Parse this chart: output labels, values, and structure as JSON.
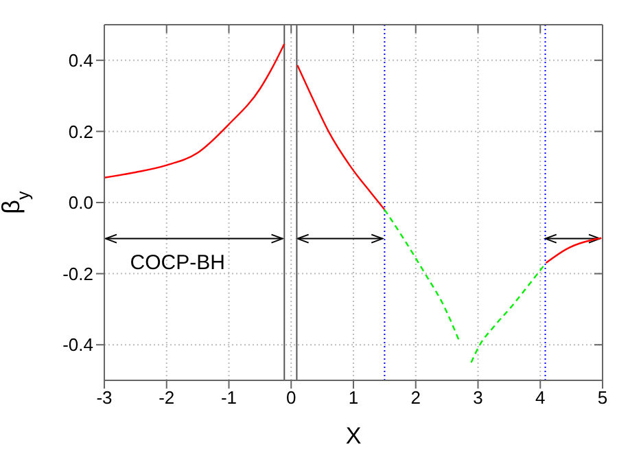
{
  "chart_data": {
    "type": "line",
    "xlabel": "X",
    "ylabel": "β$_{y}$",
    "xlim": [
      -3,
      5
    ],
    "xticks": [
      -3,
      -2,
      -1,
      0,
      1,
      2,
      3,
      4,
      5
    ],
    "ylim": [
      -0.5,
      0.5
    ],
    "yticks": [
      {
        "value": -0.4,
        "label": "-0.4"
      },
      {
        "value": -0.2,
        "label": "-0.2"
      },
      {
        "value": 0,
        "label": "0.0"
      },
      {
        "value": 0.2,
        "label": "0.2"
      },
      {
        "value": 0.4,
        "label": "0.4"
      }
    ],
    "grid": true,
    "marker": "none",
    "series": [
      {
        "color": "#ff0000",
        "line_style": "solid",
        "x": [
          -3,
          -2.5,
          -2,
          -1.5,
          -1,
          -0.5,
          -0.3,
          -0.11
        ],
        "values": [
          0.07,
          0.085,
          0.105,
          0.14,
          0.22,
          0.32,
          0.38,
          0.446
        ]
      },
      {
        "color": "#ff0000",
        "line_style": "solid",
        "x": [
          0.1,
          0.3,
          0.6,
          1.0,
          1.27,
          1.5
        ],
        "values": [
          0.386,
          0.31,
          0.2,
          0.09,
          0.03,
          -0.02
        ]
      },
      {
        "color": "#00ee00",
        "line_style": "dashed",
        "x": [
          1.5,
          1.8,
          2.15,
          2.45,
          2.7
        ],
        "values": [
          -0.02,
          -0.1,
          -0.2,
          -0.29,
          -0.39
        ]
      },
      {
        "color": "#00ee00",
        "line_style": "dashed",
        "x": [
          2.89,
          3.03,
          3.25,
          3.55,
          3.8,
          4.09
        ],
        "values": [
          -0.45,
          -0.4,
          -0.35,
          -0.29,
          -0.235,
          -0.17
        ]
      },
      {
        "color": "#ff0000",
        "line_style": "solid",
        "x": [
          4.09,
          4.43,
          4.98
        ],
        "values": [
          -0.17,
          -0.13,
          -0.1
        ]
      }
    ],
    "ref_lines": [
      {
        "axis": "x",
        "value": -0.11,
        "color": "#555555",
        "line_style": "solid"
      },
      {
        "axis": "x",
        "value": 0.09,
        "color": "#555555",
        "line_style": "solid"
      },
      {
        "axis": "x",
        "value": 1.5,
        "color": "#0000ff",
        "line_style": "dotted"
      },
      {
        "axis": "x",
        "value": 4.08,
        "color": "#0000ff",
        "line_style": "dotted"
      }
    ],
    "annotations": [
      "COCP-BH"
    ]
  }
}
